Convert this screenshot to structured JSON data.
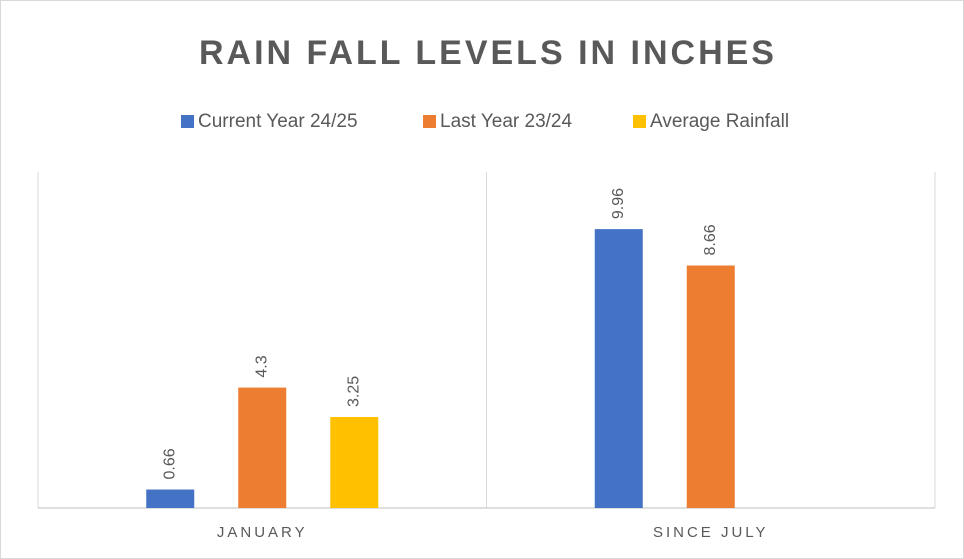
{
  "chart_data": {
    "type": "bar",
    "title": "RAIN FALL LEVELS IN INCHES",
    "categories": [
      "JANUARY",
      "SINCE JULY"
    ],
    "series": [
      {
        "name": "Current Year 24/25",
        "color": "#4472c4",
        "values": [
          0.66,
          9.96
        ]
      },
      {
        "name": "Last Year 23/24",
        "color": "#ed7d31",
        "values": [
          4.3,
          8.66
        ]
      },
      {
        "name": "Average Rainfall",
        "color": "#ffc000",
        "values": [
          3.25,
          null
        ]
      }
    ],
    "legend": "top"
  }
}
